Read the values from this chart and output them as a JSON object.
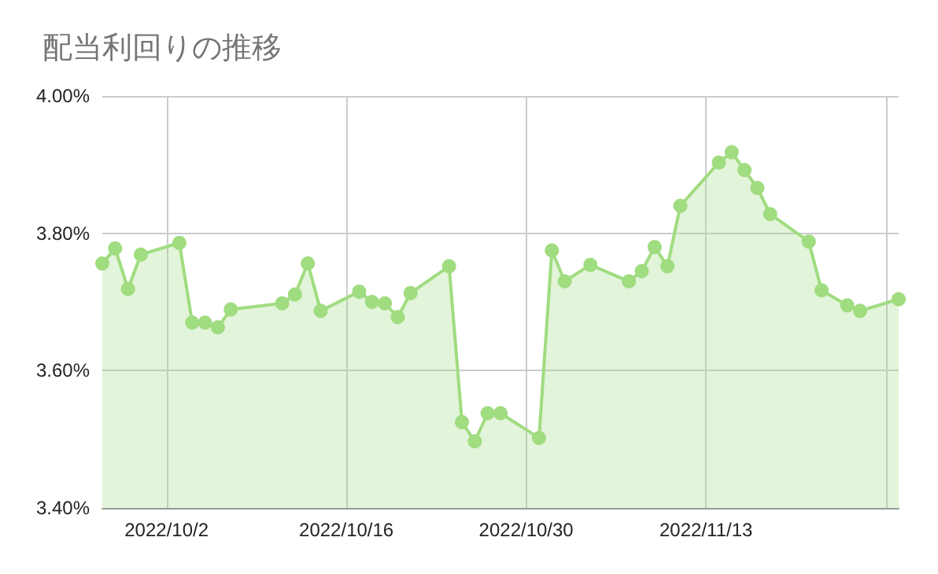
{
  "chart_data": {
    "type": "area",
    "title": "配当利回りの推移",
    "x": [
      "2022-09-27",
      "2022-09-28",
      "2022-09-29",
      "2022-09-30",
      "2022-10-03",
      "2022-10-04",
      "2022-10-05",
      "2022-10-06",
      "2022-10-07",
      "2022-10-11",
      "2022-10-12",
      "2022-10-13",
      "2022-10-14",
      "2022-10-17",
      "2022-10-18",
      "2022-10-19",
      "2022-10-20",
      "2022-10-21",
      "2022-10-24",
      "2022-10-25",
      "2022-10-26",
      "2022-10-27",
      "2022-10-28",
      "2022-10-31",
      "2022-11-01",
      "2022-11-02",
      "2022-11-04",
      "2022-11-07",
      "2022-11-08",
      "2022-11-09",
      "2022-11-10",
      "2022-11-11",
      "2022-11-14",
      "2022-11-15",
      "2022-11-16",
      "2022-11-17",
      "2022-11-18",
      "2022-11-21",
      "2022-11-22",
      "2022-11-24",
      "2022-11-25",
      "2022-11-28"
    ],
    "series": [
      {
        "color": "#a0dc80",
        "values": [
          3.756,
          3.778,
          3.719,
          3.769,
          3.786,
          3.67,
          3.67,
          3.663,
          3.689,
          3.698,
          3.711,
          3.756,
          3.687,
          3.715,
          3.7,
          3.698,
          3.678,
          3.713,
          3.752,
          3.525,
          3.497,
          3.538,
          3.538,
          3.502,
          3.775,
          3.73,
          3.754,
          3.73,
          3.745,
          3.78,
          3.752,
          3.84,
          3.903,
          3.918,
          3.892,
          3.866,
          3.828,
          3.788,
          3.717,
          3.695,
          3.687,
          3.704
        ]
      }
    ],
    "xlim": [
      "2022-09-27",
      "2022-11-28"
    ],
    "xticks": [
      {
        "value": "2022-10-02",
        "label": "2022/10/2"
      },
      {
        "value": "2022-10-16",
        "label": "2022/10/16"
      },
      {
        "value": "2022-10-30",
        "label": "2022/10/30"
      },
      {
        "value": "2022-11-13",
        "label": "2022/11/13"
      },
      {
        "value": "2022-11-27",
        "label": null
      }
    ],
    "ylim": [
      3.4,
      4.0
    ],
    "yticks": [
      {
        "value": 3.4,
        "label": "3.40%"
      },
      {
        "value": 3.6,
        "label": "3.60%"
      },
      {
        "value": 3.8,
        "label": "3.80%"
      },
      {
        "value": 4.0,
        "label": "4.00%"
      }
    ],
    "grid": true,
    "marker": "circle"
  }
}
